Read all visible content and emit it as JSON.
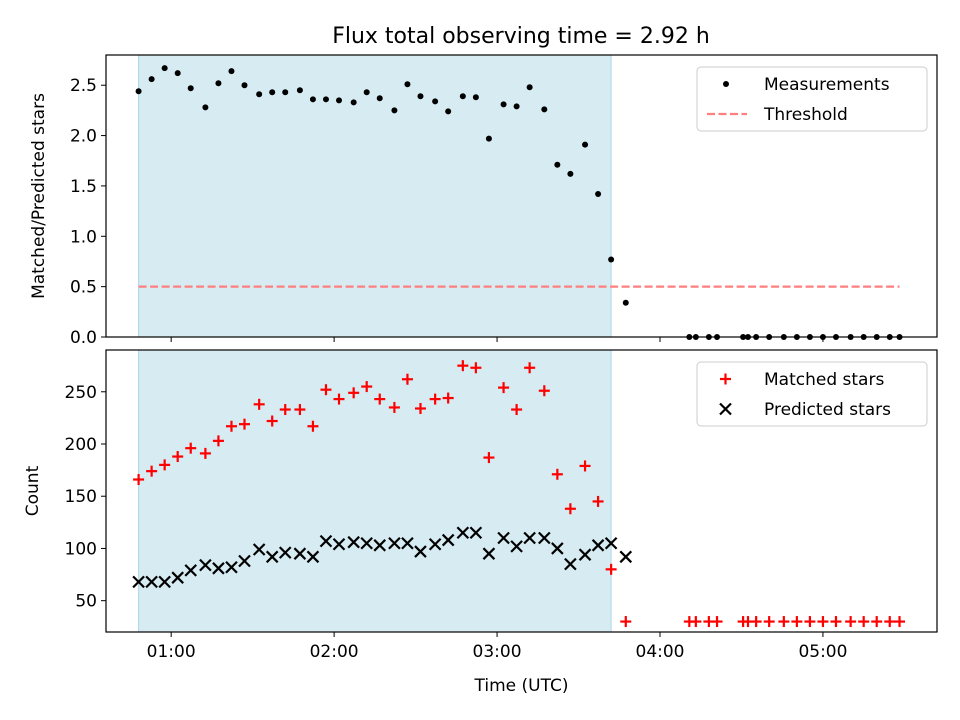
{
  "title": "Flux total observing time = 2.92 h",
  "colors": {
    "observing_span": "#add8e6",
    "measurements": "#000000",
    "threshold": "#ff7f7f",
    "matched": "#ff0000",
    "predicted": "#000000"
  },
  "chart_data": [
    {
      "type": "scatter",
      "panel": "top",
      "xlabel": "",
      "ylabel": "Matched/Predicted stars",
      "xlim": [
        0.6,
        5.7
      ],
      "ylim": [
        0.0,
        2.8
      ],
      "yticks": [
        0.0,
        0.5,
        1.0,
        1.5,
        2.0,
        2.5
      ],
      "ytick_labels": [
        "0.0",
        "0.5",
        "1.0",
        "1.5",
        "2.0",
        "2.5"
      ],
      "observing_span": [
        0.8,
        3.7
      ],
      "legend": {
        "position": "upper right",
        "entries": [
          "Measurements",
          "Threshold"
        ]
      },
      "threshold": {
        "name": "Threshold",
        "y": 0.5,
        "x_range": [
          0.8,
          5.47
        ]
      },
      "series": [
        {
          "name": "Measurements",
          "x": [
            0.8,
            0.88,
            0.96,
            1.04,
            1.12,
            1.21,
            1.29,
            1.37,
            1.45,
            1.54,
            1.62,
            1.7,
            1.79,
            1.87,
            1.95,
            2.03,
            2.12,
            2.2,
            2.28,
            2.37,
            2.45,
            2.53,
            2.62,
            2.7,
            2.79,
            2.87,
            2.95,
            3.04,
            3.12,
            3.2,
            3.29,
            3.37,
            3.45,
            3.54,
            3.62,
            3.7,
            3.79,
            4.18,
            4.22,
            4.3,
            4.35,
            4.51,
            4.54,
            4.59,
            4.67,
            4.76,
            4.84,
            4.92,
            5.0,
            5.08,
            5.17,
            5.25,
            5.33,
            5.41,
            5.47
          ],
          "y": [
            2.44,
            2.56,
            2.67,
            2.62,
            2.47,
            2.28,
            2.52,
            2.64,
            2.5,
            2.41,
            2.43,
            2.43,
            2.45,
            2.36,
            2.36,
            2.35,
            2.33,
            2.43,
            2.37,
            2.25,
            2.51,
            2.39,
            2.34,
            2.24,
            2.39,
            2.38,
            1.97,
            2.31,
            2.29,
            2.48,
            2.26,
            1.71,
            1.62,
            1.91,
            1.42,
            0.77,
            0.34,
            0.0,
            0.0,
            0.0,
            0.0,
            0.0,
            0.0,
            0.0,
            0.0,
            0.0,
            0.0,
            0.0,
            0.0,
            0.0,
            0.0,
            0.0,
            0.0,
            0.0,
            0.0
          ]
        }
      ]
    },
    {
      "type": "scatter",
      "panel": "bottom",
      "xlabel": "Time (UTC)",
      "ylabel": "Count",
      "xlim": [
        0.6,
        5.7
      ],
      "ylim": [
        20,
        290
      ],
      "xticks": [
        1,
        2,
        3,
        4,
        5
      ],
      "xtick_labels": [
        "01:00",
        "02:00",
        "03:00",
        "04:00",
        "05:00"
      ],
      "yticks": [
        50,
        100,
        150,
        200,
        250
      ],
      "ytick_labels": [
        "50",
        "100",
        "150",
        "200",
        "250"
      ],
      "observing_span": [
        0.8,
        3.7
      ],
      "legend": {
        "position": "upper right",
        "entries": [
          "Matched stars",
          "Predicted stars"
        ]
      },
      "series": [
        {
          "name": "Matched stars",
          "marker": "+",
          "x": [
            0.8,
            0.88,
            0.96,
            1.04,
            1.12,
            1.21,
            1.29,
            1.37,
            1.45,
            1.54,
            1.62,
            1.7,
            1.79,
            1.87,
            1.95,
            2.03,
            2.12,
            2.2,
            2.28,
            2.37,
            2.45,
            2.53,
            2.62,
            2.7,
            2.79,
            2.87,
            2.95,
            3.04,
            3.12,
            3.2,
            3.29,
            3.37,
            3.45,
            3.54,
            3.62,
            3.7,
            3.79,
            4.18,
            4.22,
            4.3,
            4.35,
            4.51,
            4.54,
            4.59,
            4.67,
            4.76,
            4.84,
            4.92,
            5.0,
            5.08,
            5.17,
            5.25,
            5.33,
            5.41,
            5.47
          ],
          "y": [
            166,
            174,
            180,
            188,
            196,
            191,
            203,
            217,
            219,
            238,
            222,
            233,
            233,
            217,
            252,
            243,
            249,
            255,
            243,
            235,
            262,
            234,
            243,
            244,
            275,
            273,
            187,
            254,
            233,
            273,
            251,
            171,
            138,
            179,
            145,
            80,
            30,
            30,
            30,
            30,
            30,
            30,
            30,
            30,
            30,
            30,
            30,
            30,
            30,
            30,
            30,
            30,
            30,
            30,
            30
          ]
        },
        {
          "name": "Predicted stars",
          "marker": "x",
          "x": [
            0.8,
            0.88,
            0.96,
            1.04,
            1.12,
            1.21,
            1.29,
            1.37,
            1.45,
            1.54,
            1.62,
            1.7,
            1.79,
            1.87,
            1.95,
            2.03,
            2.12,
            2.2,
            2.28,
            2.37,
            2.45,
            2.53,
            2.62,
            2.7,
            2.79,
            2.87,
            2.95,
            3.04,
            3.12,
            3.2,
            3.29,
            3.37,
            3.45,
            3.54,
            3.62,
            3.7,
            3.79
          ],
          "y": [
            68,
            68,
            68,
            72,
            79,
            84,
            81,
            82,
            88,
            99,
            92,
            96,
            95,
            92,
            107,
            104,
            106,
            105,
            103,
            105,
            105,
            97,
            104,
            108,
            115,
            115,
            95,
            110,
            102,
            110,
            110,
            100,
            85,
            94,
            103,
            105,
            92
          ]
        }
      ]
    }
  ]
}
